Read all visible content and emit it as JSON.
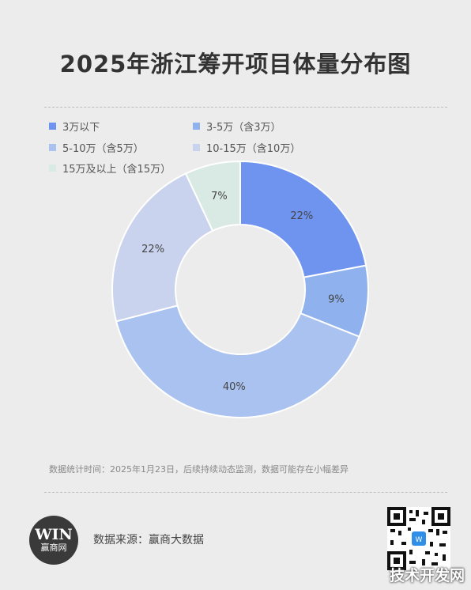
{
  "title": "2025年浙江筹开项目体量分布图",
  "legend": [
    {
      "label": "3万以下",
      "color": "#6f94f0"
    },
    {
      "label": "3-5万（含3万）",
      "color": "#8fb2ee"
    },
    {
      "label": "5-10万（含5万）",
      "color": "#a9c2ef"
    },
    {
      "label": "10-15万（含10万）",
      "color": "#c9d3ee"
    },
    {
      "label": "15万及以上（含15万）",
      "color": "#d9e9e3"
    }
  ],
  "chart_data": {
    "type": "pie",
    "donut": true,
    "categories": [
      "3万以下",
      "3-5万（含3万）",
      "5-10万（含5万）",
      "10-15万（含10万）",
      "15万及以上（含15万）"
    ],
    "values": [
      22,
      9,
      40,
      22,
      7
    ],
    "value_labels": [
      "22%",
      "9%",
      "40%",
      "22%",
      "7%"
    ],
    "colors": [
      "#6f94f0",
      "#8fb2ee",
      "#a9c2ef",
      "#c9d3ee",
      "#d9e9e3"
    ],
    "legend_position": "top-left"
  },
  "footnote": "数据统计时间：2025年1月23日，后续持续动态监测，数据可能存在小幅差异",
  "logo": {
    "mark": "WIN",
    "text": "赢商网"
  },
  "source": "数据来源：赢商大数据",
  "watermark": "技术开发网",
  "qr_icon": "qr-code-icon"
}
